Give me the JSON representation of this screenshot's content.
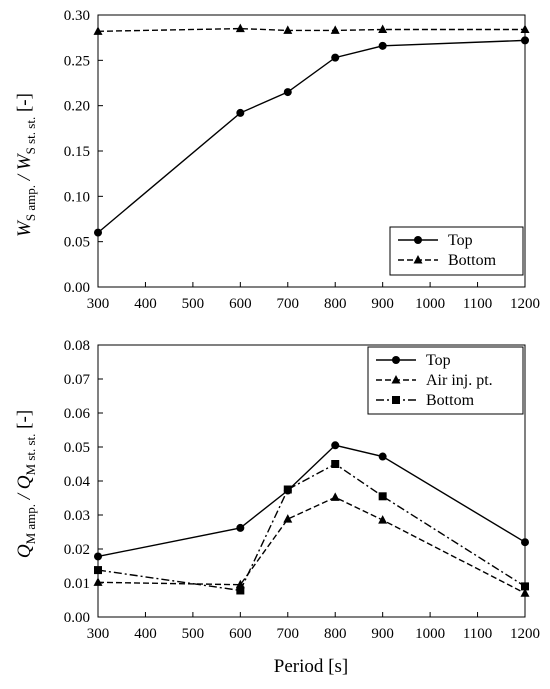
{
  "chart_data": [
    {
      "type": "line",
      "ylabel_main": "W",
      "ylabel_sub1": "S amp.",
      "ylabel_mid": " / W",
      "ylabel_sub2": "S st. st.",
      "ylabel_unit": " [-]",
      "x": [
        300,
        600,
        700,
        800,
        900,
        1200
      ],
      "xticks": [
        "300",
        "400",
        "500",
        "600",
        "700",
        "800",
        "900",
        "1000",
        "1100",
        "1200"
      ],
      "xlim": [
        300,
        1200
      ],
      "ylim": [
        0,
        0.3
      ],
      "yticks": [
        "0.00",
        "0.05",
        "0.10",
        "0.15",
        "0.20",
        "0.25",
        "0.30"
      ],
      "grid": false,
      "legend_position": "bottom-right",
      "series": [
        {
          "name": "Top",
          "style": "solid",
          "marker": "circle",
          "values": [
            0.06,
            0.192,
            0.215,
            0.253,
            0.266,
            0.272
          ]
        },
        {
          "name": "Bottom",
          "style": "dashed",
          "marker": "triangle",
          "values": [
            0.282,
            0.285,
            0.283,
            0.283,
            0.284,
            0.284
          ]
        }
      ]
    },
    {
      "type": "line",
      "ylabel_main": "Q",
      "ylabel_sub1": "M amp.",
      "ylabel_mid": " / Q",
      "ylabel_sub2": "M st. st.",
      "ylabel_unit": " [-]",
      "xlabel": "Period [s]",
      "x": [
        300,
        600,
        700,
        800,
        900,
        1200
      ],
      "xticks": [
        "300",
        "400",
        "500",
        "600",
        "700",
        "800",
        "900",
        "1000",
        "1100",
        "1200"
      ],
      "xlim": [
        300,
        1200
      ],
      "ylim": [
        0,
        0.08
      ],
      "yticks": [
        "0.00",
        "0.01",
        "0.02",
        "0.03",
        "0.04",
        "0.05",
        "0.06",
        "0.07",
        "0.08"
      ],
      "grid": false,
      "legend_position": "top-right",
      "series": [
        {
          "name": "Top",
          "style": "solid",
          "marker": "circle",
          "values": [
            0.0178,
            0.0262,
            0.0372,
            0.0505,
            0.0472,
            0.022
          ]
        },
        {
          "name": "Air inj. pt.",
          "style": "dashed",
          "marker": "triangle",
          "values": [
            0.0102,
            0.0095,
            0.0288,
            0.0352,
            0.0285,
            0.007
          ]
        },
        {
          "name": "Bottom",
          "style": "dashdot",
          "marker": "square",
          "values": [
            0.0138,
            0.0078,
            0.0375,
            0.045,
            0.0355,
            0.009
          ]
        }
      ]
    }
  ]
}
